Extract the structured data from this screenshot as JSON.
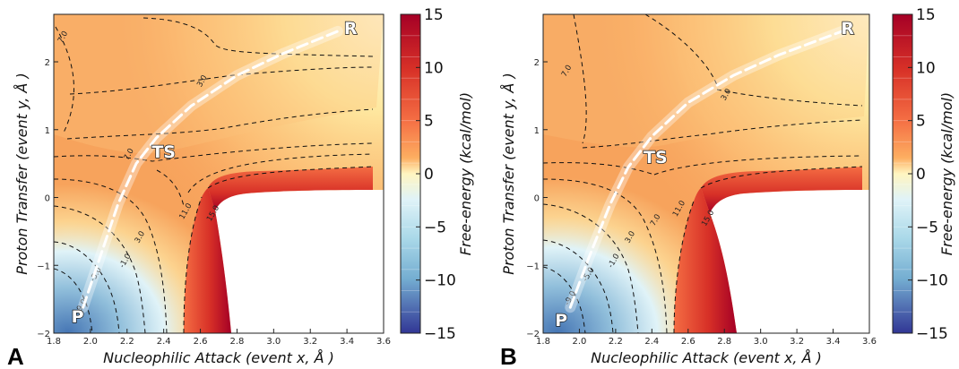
{
  "chart_data": [
    {
      "type": "heatmap",
      "panel": "A",
      "xlabel": "Nucleophilic Attack (event x, Å )",
      "ylabel": "Proton Transfer (event y, Å )",
      "xlim": [
        1.8,
        3.6
      ],
      "ylim": [
        -2,
        2.7
      ],
      "xticks": [
        "1.8",
        "2.0",
        "2.2",
        "2.4",
        "2.6",
        "2.8",
        "3.0",
        "3.2",
        "3.4",
        "3.6"
      ],
      "yticks": [
        "−2",
        "−1",
        "0",
        "1",
        "2"
      ],
      "points": [
        {
          "label": "R",
          "x": 3.42,
          "y": 2.5
        },
        {
          "label": "TS",
          "x": 2.4,
          "y": 0.68
        },
        {
          "label": "P",
          "x": 1.93,
          "y": -1.75
        }
      ],
      "path": [
        [
          1.96,
          -1.62
        ],
        [
          2.05,
          -0.9
        ],
        [
          2.15,
          -0.1
        ],
        [
          2.25,
          0.5
        ],
        [
          2.36,
          0.88
        ],
        [
          2.55,
          1.35
        ],
        [
          2.8,
          1.8
        ],
        [
          3.05,
          2.12
        ],
        [
          3.35,
          2.45
        ]
      ],
      "contours": [
        {
          "level": "7.0",
          "x": 1.86,
          "y": 2.35
        },
        {
          "level": "3.0",
          "x": 2.62,
          "y": 1.7
        },
        {
          "level": "7.0",
          "x": 2.22,
          "y": 0.62
        },
        {
          "level": "11.0",
          "x": 2.53,
          "y": -0.22
        },
        {
          "level": "15.0",
          "x": 2.68,
          "y": -0.25
        },
        {
          "level": "3.0",
          "x": 2.28,
          "y": -0.6
        },
        {
          "level": "-1.0",
          "x": 2.2,
          "y": -0.95
        },
        {
          "level": "-5.0",
          "x": 2.04,
          "y": -1.15
        },
        {
          "level": "-9.0",
          "x": 1.96,
          "y": -1.62
        }
      ],
      "colorbar": {
        "label": "Free-energy (kcal/mol)",
        "ticks": [
          "15",
          "10",
          "5",
          "0",
          "−5",
          "−10",
          "−15"
        ],
        "min": -15,
        "max": 15
      }
    },
    {
      "type": "heatmap",
      "panel": "B",
      "xlabel": "Nucleophilic Attack (event x, Å )",
      "ylabel": "Proton Transfer (event y, Å )",
      "xlim": [
        1.8,
        3.6
      ],
      "ylim": [
        -2,
        2.7
      ],
      "xticks": [
        "1.8",
        "2.0",
        "2.2",
        "2.4",
        "2.6",
        "2.8",
        "3.0",
        "3.2",
        "3.4",
        "3.6"
      ],
      "yticks": [
        "−2",
        "−1",
        "0",
        "1",
        "2"
      ],
      "points": [
        {
          "label": "R",
          "x": 3.48,
          "y": 2.5
        },
        {
          "label": "TS",
          "x": 2.42,
          "y": 0.6
        },
        {
          "label": "P",
          "x": 1.9,
          "y": -1.8
        }
      ],
      "path": [
        [
          1.95,
          -1.62
        ],
        [
          2.05,
          -0.9
        ],
        [
          2.17,
          -0.1
        ],
        [
          2.27,
          0.45
        ],
        [
          2.4,
          0.9
        ],
        [
          2.6,
          1.4
        ],
        [
          2.85,
          1.8
        ],
        [
          3.1,
          2.1
        ],
        [
          3.45,
          2.45
        ]
      ],
      "contours": [
        {
          "level": "7.0",
          "x": 1.94,
          "y": 1.85
        },
        {
          "level": "3.0",
          "x": 2.82,
          "y": 1.5
        },
        {
          "level": "11.0",
          "x": 2.56,
          "y": -0.18
        },
        {
          "level": "15.0",
          "x": 2.72,
          "y": -0.32
        },
        {
          "level": "7.0",
          "x": 2.43,
          "y": -0.35
        },
        {
          "level": "3.0",
          "x": 2.29,
          "y": -0.6
        },
        {
          "level": "-1.0",
          "x": 2.2,
          "y": -0.95
        },
        {
          "level": "-5.0",
          "x": 2.06,
          "y": -1.15
        },
        {
          "level": "-9.0",
          "x": 1.96,
          "y": -1.5
        }
      ],
      "colorbar": {
        "label": "Free-energy (kcal/mol)",
        "ticks": [
          "15",
          "10",
          "5",
          "0",
          "−5",
          "−10",
          "−15"
        ],
        "min": -15,
        "max": 15
      }
    }
  ],
  "panel_labels": [
    "A",
    "B"
  ]
}
